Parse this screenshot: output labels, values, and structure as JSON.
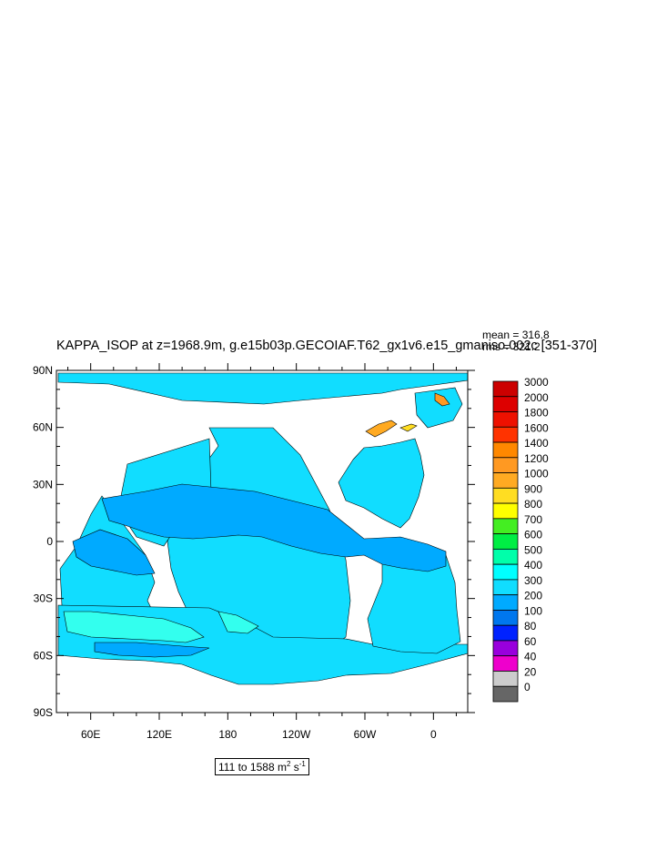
{
  "plot": {
    "title": "KAPPA_ISOP at z=1968.9m, g.e15b03p.GECOIAF.T62_gx1v6.e15_gmaniso.002c [351-370]",
    "stats": {
      "mean": "mean = 316.8",
      "rms": "rms = 321.2"
    },
    "range_label_main": "111 to 1588 m",
    "range_label_sup1": "2",
    "range_label_mid": " s",
    "range_label_sup2": "-1"
  },
  "chart_data": {
    "type": "heatmap",
    "title": "KAPPA_ISOP at z=1968.9m, g.e15b03p.GECOIAF.T62_gx1v6.e15_gmaniso.002c [351-370]",
    "y_ticks": [
      "90N",
      "60N",
      "30N",
      "0",
      "30S",
      "60S",
      "90S"
    ],
    "y_tick_values": [
      90,
      60,
      30,
      0,
      -30,
      -60,
      -90
    ],
    "x_ticks": [
      "60E",
      "120E",
      "180",
      "120W",
      "60W",
      "0"
    ],
    "x_tick_values": [
      60,
      120,
      180,
      240,
      300,
      360
    ],
    "xlim": [
      30,
      390
    ],
    "ylim": [
      -90,
      90
    ],
    "colorbar": {
      "levels": [
        "3000",
        "2000",
        "1800",
        "1600",
        "1400",
        "1200",
        "1000",
        "900",
        "800",
        "700",
        "600",
        "500",
        "400",
        "300",
        "200",
        "100",
        "80",
        "60",
        "40",
        "20",
        "0"
      ],
      "colors": [
        "#cc0000",
        "#dd0000",
        "#ee1100",
        "#ff3300",
        "#ff8800",
        "#ff9922",
        "#ffaa22",
        "#ffdd22",
        "#ffff00",
        "#44ee22",
        "#00ee44",
        "#00ffaa",
        "#00ffff",
        "#11ddff",
        "#00aaff",
        "#0077ee",
        "#0022ff",
        "#9900dd",
        "#ee00cc",
        "#cccccc",
        "#666666"
      ]
    },
    "mean": 316.8,
    "rms": 321.2,
    "data_min": 111,
    "data_max": 1588,
    "units": "m2 s-1"
  }
}
